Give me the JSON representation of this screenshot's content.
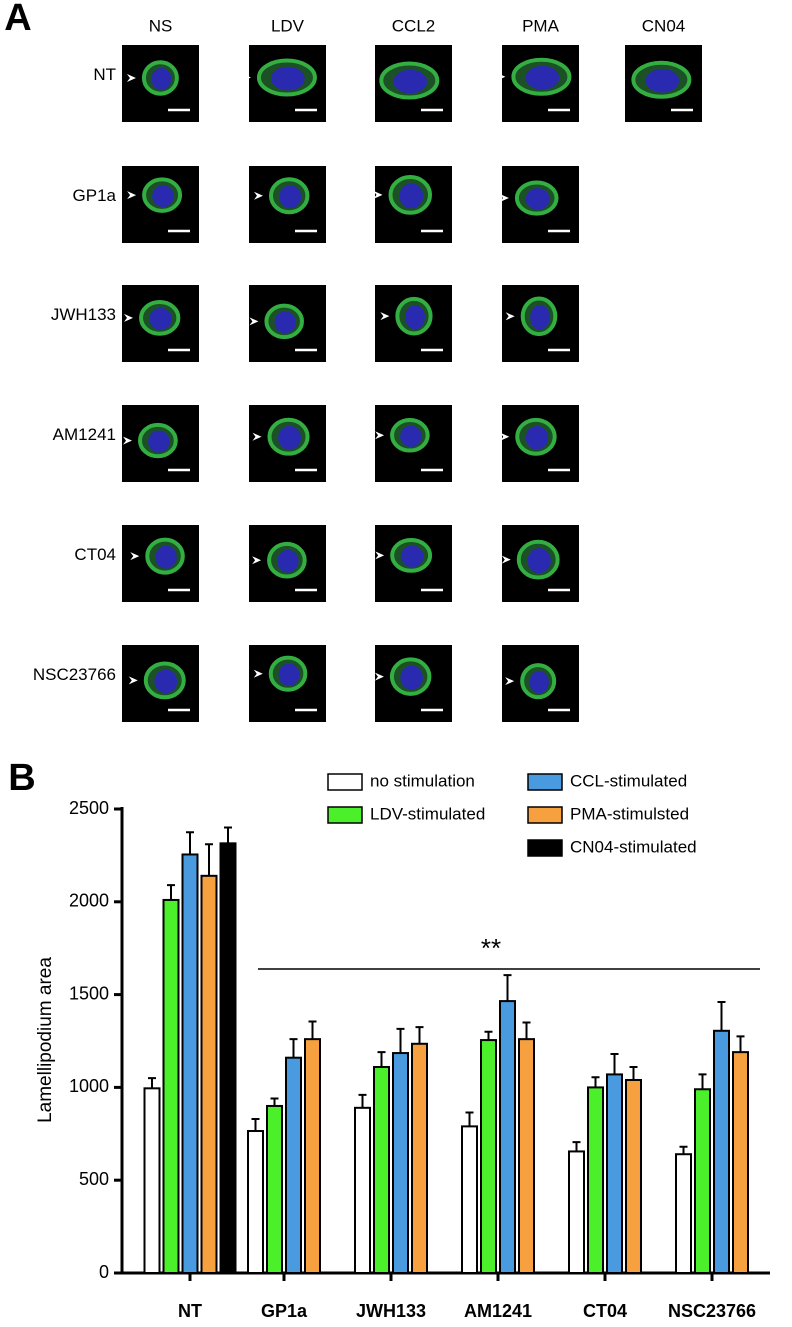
{
  "panel_a": {
    "label": "A",
    "columns": [
      "NS",
      "LDV",
      "CCL2",
      "PMA",
      "CN04"
    ],
    "rows": [
      "NT",
      "GP1a",
      "JWH133",
      "AM1241",
      "CT04",
      "NSC23766"
    ]
  },
  "chart_data": {
    "type": "bar",
    "panel_label": "B",
    "y_label": "Lamellipodium area",
    "annotation": "**",
    "categories": [
      "NT",
      "GP1a",
      "JWH133",
      "AM1241",
      "CT04",
      "NSC23766"
    ],
    "series": [
      {
        "name": "no stimulation",
        "color": "#ffffff",
        "values": [
          995,
          765,
          890,
          790,
          655,
          640
        ],
        "errors": [
          55,
          65,
          70,
          75,
          50,
          40
        ]
      },
      {
        "name": "LDV-stimulated",
        "color": "#4cf02a",
        "values": [
          2010,
          900,
          1110,
          1255,
          1000,
          990
        ],
        "errors": [
          80,
          40,
          80,
          45,
          55,
          80
        ]
      },
      {
        "name": "CCL-stimulated",
        "color": "#4a9ae0",
        "values": [
          2255,
          1160,
          1185,
          1465,
          1070,
          1305
        ],
        "errors": [
          120,
          100,
          130,
          140,
          110,
          155
        ]
      },
      {
        "name": "PMA-stimulsted",
        "color": "#f7a040",
        "values": [
          2140,
          1260,
          1235,
          1260,
          1040,
          1190
        ],
        "errors": [
          170,
          95,
          90,
          90,
          70,
          85
        ]
      },
      {
        "name": "CN04-stimulated",
        "color": "#000000",
        "values": [
          2315,
          null,
          null,
          null,
          null,
          null
        ],
        "errors": [
          85,
          null,
          null,
          null,
          null,
          null
        ]
      }
    ],
    "ylim": [
      0,
      2500
    ],
    "yticks": [
      0,
      500,
      1000,
      1500,
      2000,
      2500
    ],
    "grid": false
  }
}
